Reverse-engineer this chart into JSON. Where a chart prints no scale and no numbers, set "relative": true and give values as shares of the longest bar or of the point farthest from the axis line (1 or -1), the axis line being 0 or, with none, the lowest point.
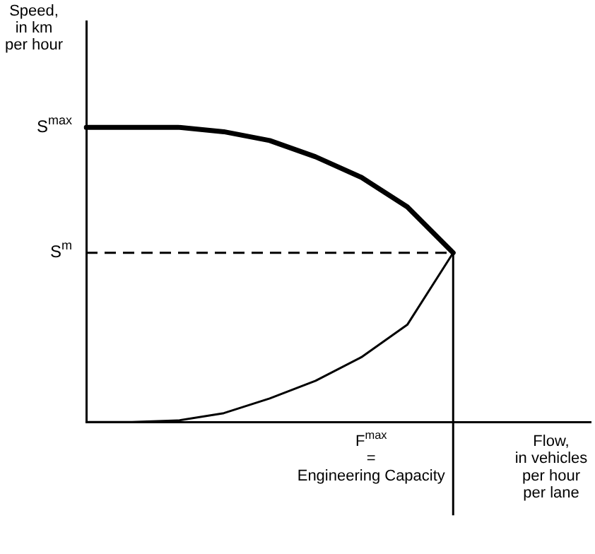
{
  "chart_data": {
    "type": "line",
    "relative": true,
    "xlabel": "Flow,\nin vehicles\nper hour\nper lane",
    "ylabel": "Speed,\nin km\nper hour",
    "categories": [
      null,
      null,
      null,
      null,
      null,
      null,
      null,
      null,
      null,
      null,
      null,
      null
    ],
    "ylim": [
      0,
      1.36
    ],
    "legend": false,
    "grid": false,
    "marker": "none",
    "series": [
      {
        "color": "#000000",
        "values": [
          1,
          1,
          1,
          0.985,
          0.955,
          0.9,
          0.83,
          0.73,
          0.574,
          null,
          null,
          null
        ]
      },
      {
        "color": "#000000",
        "values": [
          0,
          0,
          0.005,
          0.03,
          0.08,
          0.14,
          0.22,
          0.33,
          0.574,
          null,
          null,
          null
        ]
      }
    ],
    "ref_lines": [
      {
        "axis": "y",
        "value": 0.574,
        "label": "S$^{m}$",
        "line_style": "dashed",
        "color": "#000000"
      },
      {
        "axis": "x",
        "label": "F$^{max}$\n=\nEngineering Capacity",
        "color": "#000000"
      }
    ],
    "annotations": [
      "S$^{max}$"
    ]
  }
}
